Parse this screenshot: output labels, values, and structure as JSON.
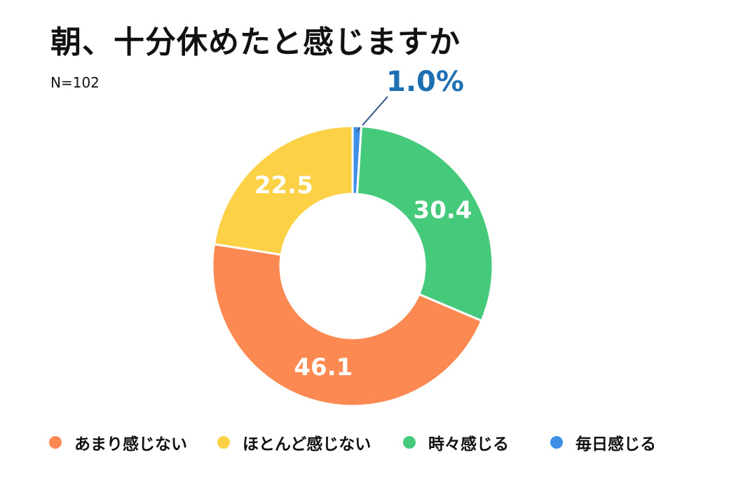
{
  "title": "朝、十分休めたと感じますか",
  "subtitle": "N=102",
  "chart_data": {
    "type": "pie",
    "variant": "donut",
    "title": "朝、十分休めたと感じますか",
    "subtitle": "N=102",
    "start_angle_deg": 0,
    "direction": "clockwise",
    "slices": [
      {
        "key": "daily",
        "label": "毎日感じる",
        "value": 1.0,
        "value_label": "1.0%",
        "color": "#3d8fe8",
        "label_color": "#1f6fb3",
        "label_outside": true
      },
      {
        "key": "sometimes",
        "label": "時々感じる",
        "value": 30.4,
        "value_label": "30.4",
        "color": "#45c97b",
        "label_color": "#ffffff"
      },
      {
        "key": "rarely",
        "label": "あまり感じない",
        "value": 46.1,
        "value_label": "46.1",
        "color": "#fb8951",
        "label_color": "#ffffff"
      },
      {
        "key": "hardly",
        "label": "ほとんど感じない",
        "value": 22.5,
        "value_label": "22.5",
        "color": "#fdd146",
        "label_color": "#ffffff"
      }
    ],
    "legend": {
      "position": "bottom",
      "order": [
        "rarely",
        "hardly",
        "sometimes",
        "daily"
      ]
    }
  }
}
